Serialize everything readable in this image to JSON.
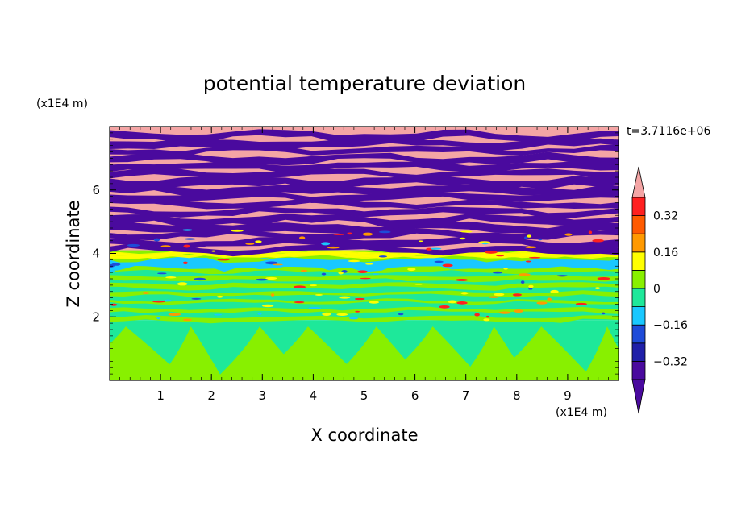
{
  "chart_data": {
    "type": "heatmap",
    "title": "potential temperature deviation",
    "xlabel": "X coordinate",
    "ylabel": "Z coordinate",
    "x_units": "(x1E4 m)",
    "y_units": "(x1E4 m)",
    "time_label": "t=3.7116e+06",
    "xlim": [
      0,
      10
    ],
    "ylim": [
      0,
      8
    ],
    "x_ticks": [
      1,
      2,
      3,
      4,
      5,
      6,
      7,
      8,
      9
    ],
    "y_ticks": [
      2,
      4,
      6
    ],
    "colorbar": {
      "levels": [
        -0.4,
        -0.32,
        -0.24,
        -0.16,
        -0.08,
        0,
        0.08,
        0.16,
        0.24,
        0.32,
        0.4
      ],
      "tick_values": [
        0.32,
        0.16,
        0,
        -0.16,
        -0.32
      ],
      "tick_labels": [
        "0.32",
        "0.16",
        "0",
        "−0.16",
        "−0.32"
      ],
      "colors": [
        "#4a0a9e",
        "#1f1fa8",
        "#1e4bd8",
        "#19c8ff",
        "#1ee89a",
        "#88f000",
        "#ffff00",
        "#ff9900",
        "#ff5a00",
        "#ff2020",
        "#f4a5a5"
      ],
      "extend": "both"
    },
    "bands": [
      {
        "z": [
          0.0,
          1.9
        ],
        "dominant": "#1ee89a",
        "secondary": "#88f000"
      },
      {
        "z": [
          1.9,
          3.8
        ],
        "dominant": "#1ee89a",
        "secondary": "#88f000"
      },
      {
        "z": [
          3.5,
          3.9
        ],
        "dominant": "#19c8ff",
        "secondary": "#1ee89a"
      },
      {
        "z": [
          3.8,
          4.1
        ],
        "dominant": "#88f000",
        "secondary": "#ffff00"
      },
      {
        "z": [
          4.1,
          8.0
        ],
        "dominant": "#f4a5a5",
        "secondary": "#4a0a9e"
      }
    ]
  }
}
